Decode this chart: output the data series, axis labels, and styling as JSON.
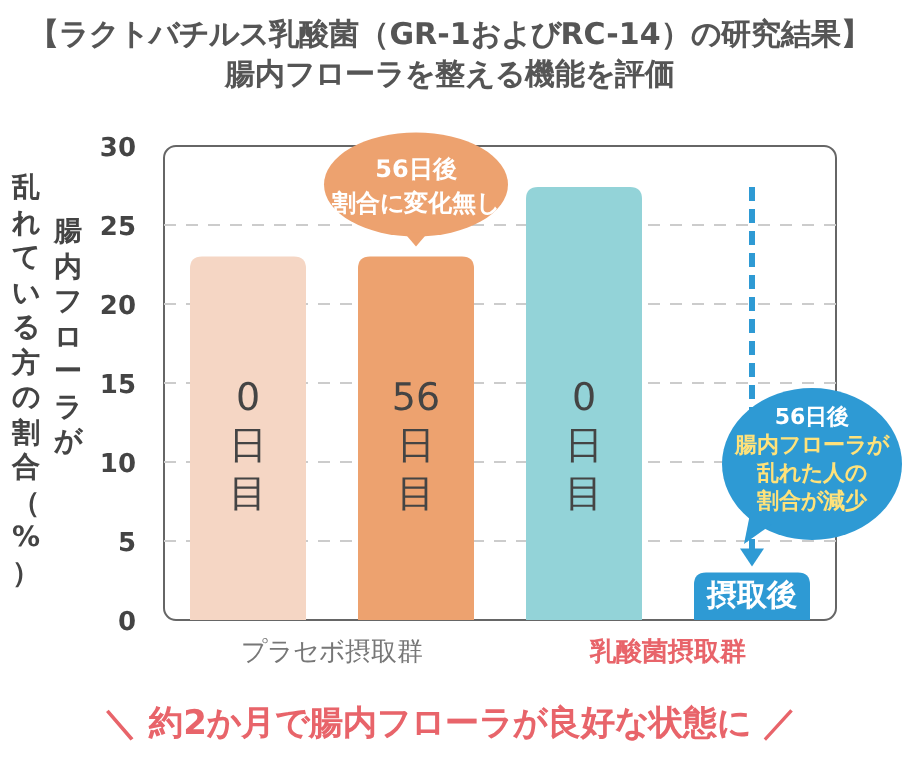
{
  "chart_data": {
    "type": "bar",
    "title": "【ラクトバチルス乳酸菌（GR-1およびRC-14）の研究結果】",
    "subtitle": "腸内フローラを整える機能を評価",
    "ylabel": "腸内フローラが乱れている方の割合（%）",
    "categories": [
      "0日目",
      "56日目",
      "0日目",
      "摂取後"
    ],
    "values": [
      23,
      23,
      27.4,
      3
    ],
    "colors": [
      "#f5d6c4",
      "#eda26f",
      "#93d3d8",
      "#2e9ad4"
    ],
    "ylim": [
      0,
      30
    ],
    "yticks": [
      0,
      5,
      10,
      15,
      20,
      25,
      30
    ],
    "grid": "y",
    "annotations": [
      "プラセボ摂取群",
      "乳酸菌摂取群",
      "56日後割合に変化無し",
      "56日後腸内フローラが乱れた人の割合が減少",
      "＼ 約2か月で腸内フローラが良好な状態に ／"
    ]
  }
}
